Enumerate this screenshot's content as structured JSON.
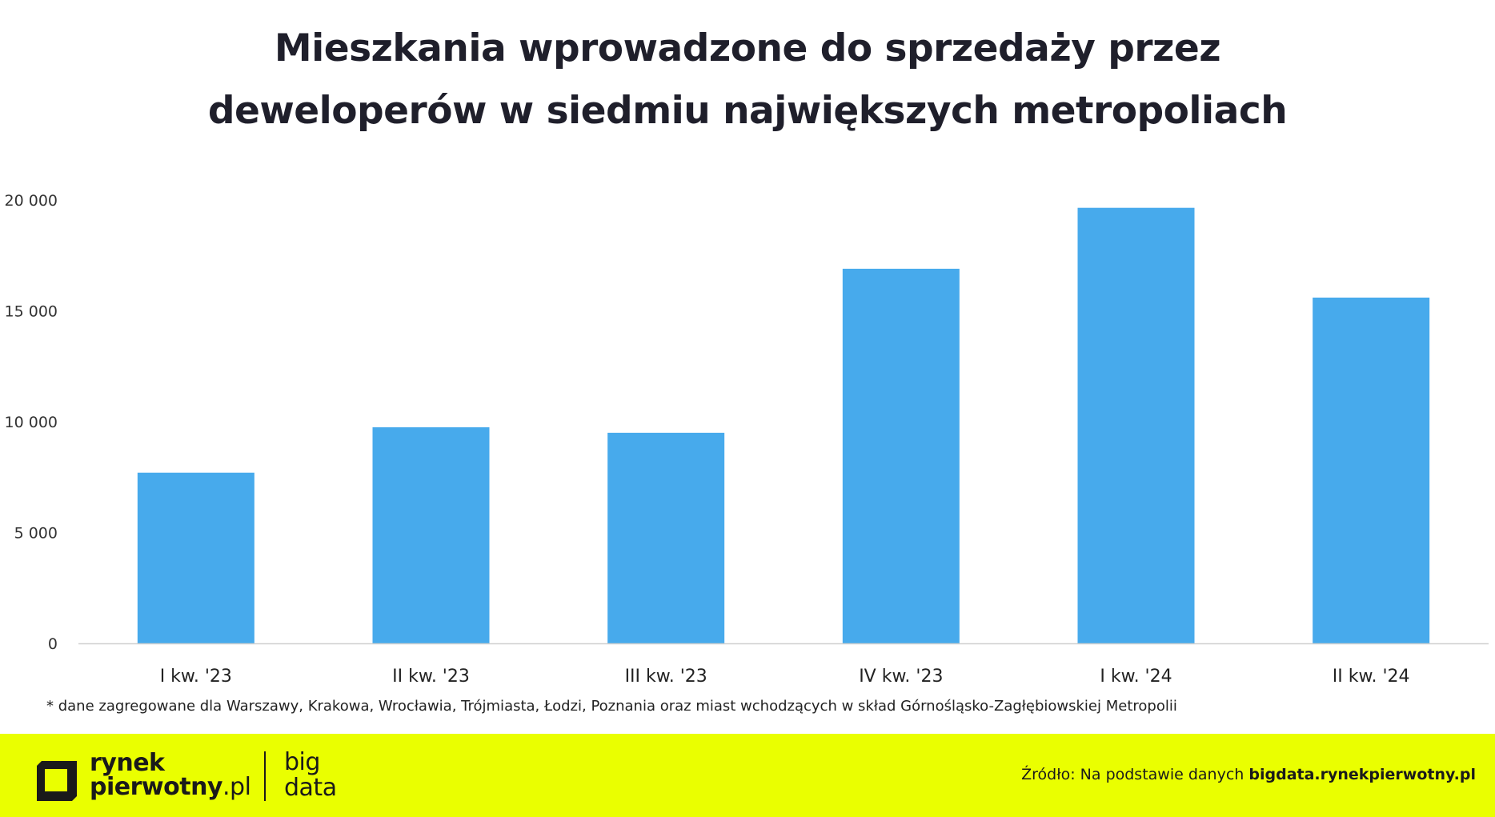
{
  "title_line1": "Mieszkania wprowadzone do sprzedaży przez",
  "title_line2": "deweloperów w siedmiu największych metropoliach",
  "chart_data": {
    "type": "bar",
    "categories": [
      "I kw. '23",
      "II kw. '23",
      "III kw. '23",
      "IV kw. '23",
      "I kw. '24",
      "II kw. '24"
    ],
    "values": [
      7700,
      9750,
      9500,
      16900,
      19650,
      15600
    ],
    "ylim": [
      0,
      20000
    ],
    "yticks": [
      0,
      5000,
      10000,
      15000,
      20000
    ],
    "ytick_labels": [
      "0",
      "5 000",
      "10 000",
      "15 000",
      "20 000"
    ],
    "title": "",
    "xlabel": "",
    "ylabel": "",
    "bar_color": "#47aaec",
    "grid": false,
    "legend": "none"
  },
  "footnote": "* dane zagregowane dla Warszawy, Krakowa, Wrocławia, Trójmiasta, Łodzi, Poznania oraz miast wchodzących w skład Górnośląsko-Zagłębiowskiej Metropolii",
  "footer": {
    "background": "#eaff00",
    "logo_line1": "rynek",
    "logo_line2": "pierwotny",
    "logo_suffix": ".pl",
    "sublogo_line1": "big",
    "sublogo_line2": "data",
    "source_prefix": "Źródło: Na podstawie danych ",
    "source_site": "bigdata.rynekpierwotny.pl"
  }
}
